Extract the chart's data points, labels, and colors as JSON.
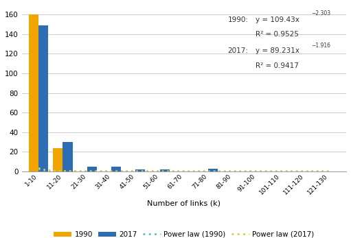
{
  "categories": [
    "1-10",
    "11-20",
    "21-30",
    "31-40",
    "41-50",
    "51-60",
    "61-70",
    "71-80",
    "81-90",
    "91-100",
    "101-110",
    "111-120",
    "121-130"
  ],
  "values_1990": [
    160,
    24,
    0,
    0,
    0,
    0,
    0,
    0,
    0,
    0,
    0,
    0,
    0
  ],
  "values_2017": [
    149,
    30,
    5,
    5,
    2,
    2,
    0,
    3,
    0,
    0,
    0,
    0,
    0
  ],
  "color_1990": "#F0A500",
  "color_2017": "#2E6DB4",
  "power_law_1990_a": 109.43,
  "power_law_1990_b": -2.303,
  "power_law_2017_a": 89.231,
  "power_law_2017_b": -1.916,
  "dotted_color_1990": "#5BB8D4",
  "dotted_color_2017": "#E8C840",
  "xlabel": "Number of links (k)",
  "ylim": [
    0,
    170
  ],
  "yticks": [
    0,
    20,
    40,
    60,
    80,
    100,
    120,
    140,
    160
  ],
  "background_color": "#FFFFFF",
  "grid_color": "#CCCCCC"
}
